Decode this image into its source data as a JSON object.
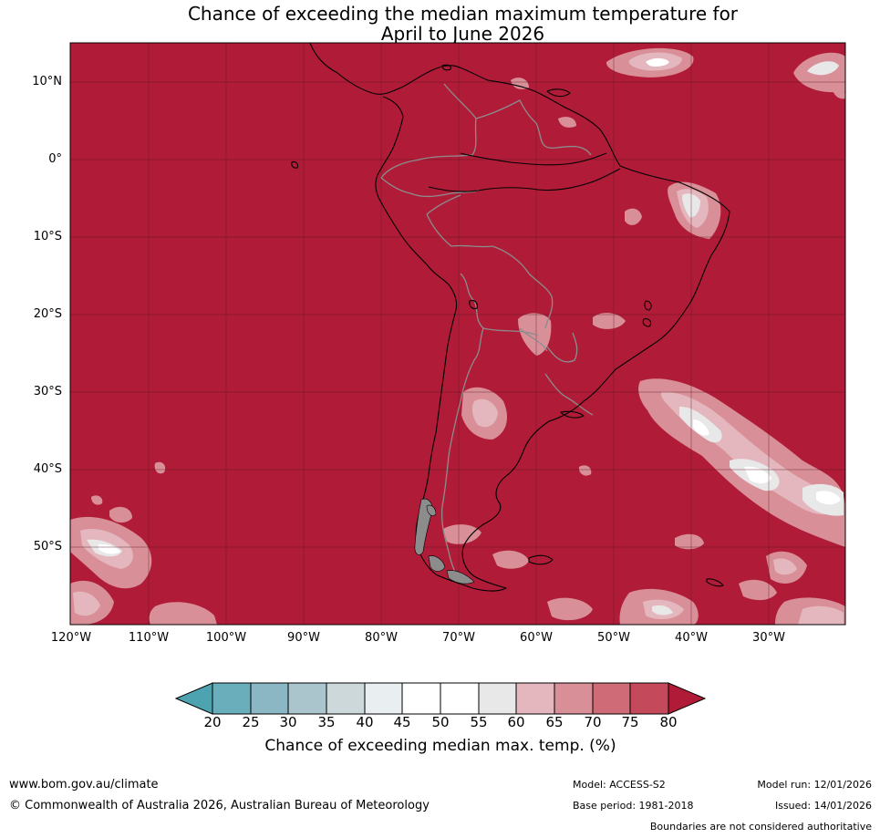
{
  "title": {
    "line1": "Chance of exceeding the median maximum temperature for",
    "line2": "April to June 2026"
  },
  "map": {
    "lat_labels": [
      "10°N",
      "0°",
      "10°S",
      "20°S",
      "30°S",
      "40°S",
      "50°S"
    ],
    "lon_labels": [
      "120°W",
      "110°W",
      "100°W",
      "90°W",
      "80°W",
      "70°W",
      "60°W",
      "50°W",
      "40°W",
      "30°W"
    ],
    "colors": {
      "c80": "#b01c38",
      "c75": "#c44a5b",
      "c70": "#ce6b76",
      "c65": "#d98f98",
      "c60": "#e3b7bd",
      "c55": "#e9e8e9",
      "c50": "#ffffff",
      "c40": "#e9eef0",
      "c35": "#cdd8da",
      "c30": "#aac6cc",
      "c25": "#8ab7c3",
      "c20": "#6aaebb",
      "c15": "#4da3b0"
    }
  },
  "colorbar": {
    "ticks": [
      "20",
      "25",
      "30",
      "35",
      "40",
      "45",
      "50",
      "55",
      "60",
      "65",
      "70",
      "75",
      "80"
    ],
    "label": "Chance of exceeding median max. temp. (%)"
  },
  "footer": {
    "url": "www.bom.gov.au/climate",
    "copyright": "© Commonwealth of Australia 2026, Australian Bureau of Meteorology",
    "model": "Model: ACCESS-S2",
    "model_run": "Model run: 12/01/2026",
    "base_period": "Base period: 1981-2018",
    "issued": "Issued: 14/01/2026",
    "disclaimer": "Boundaries are not considered authoritative"
  }
}
